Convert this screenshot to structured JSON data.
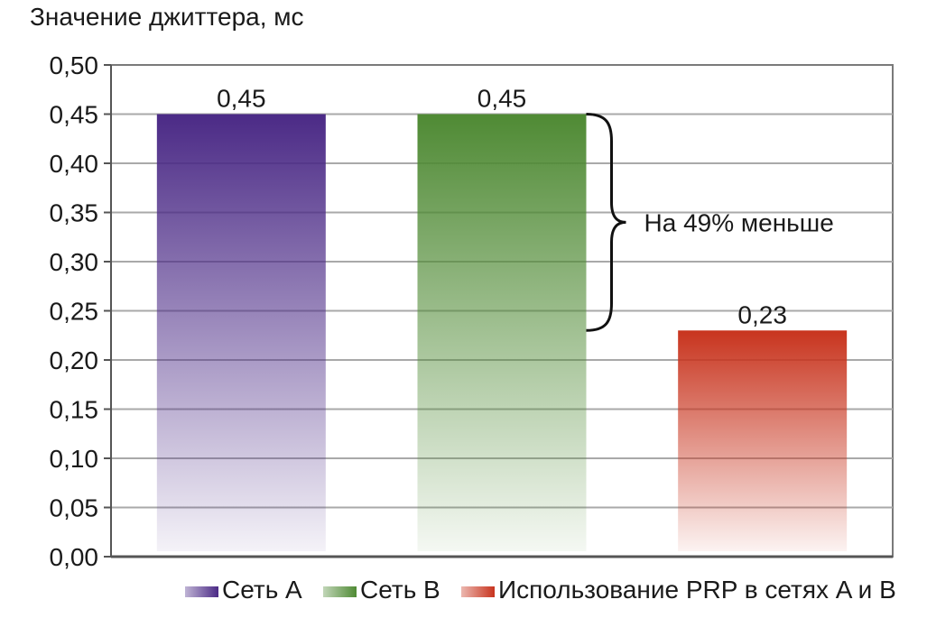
{
  "chart_data": {
    "type": "bar",
    "ylabel": "Значение джиттера, мс",
    "ylim": [
      0,
      0.5
    ],
    "yticks": [
      "0,00",
      "0,05",
      "0,10",
      "0,15",
      "0,20",
      "0,25",
      "0,30",
      "0,35",
      "0,40",
      "0,45",
      "0,50"
    ],
    "grid": true,
    "legend_position": "bottom",
    "categories": [
      "Сеть A",
      "Сеть B",
      "Использование PRP в сетях A и B"
    ],
    "values": [
      0.45,
      0.45,
      0.23
    ],
    "data_labels": [
      "0,45",
      "0,45",
      "0,23"
    ],
    "colors": [
      "#4b2a86",
      "#4f8a34",
      "#c8341e"
    ],
    "legend": [
      {
        "label": "Сеть A",
        "color": "#4b2a86"
      },
      {
        "label": "Сеть B",
        "color": "#4f8a34"
      },
      {
        "label": "Использование PRP в сетях A и B",
        "color": "#c8341e"
      }
    ],
    "annotation": {
      "text": "На 49% меньше",
      "from_value": 0.45,
      "to_value": 0.23
    }
  }
}
